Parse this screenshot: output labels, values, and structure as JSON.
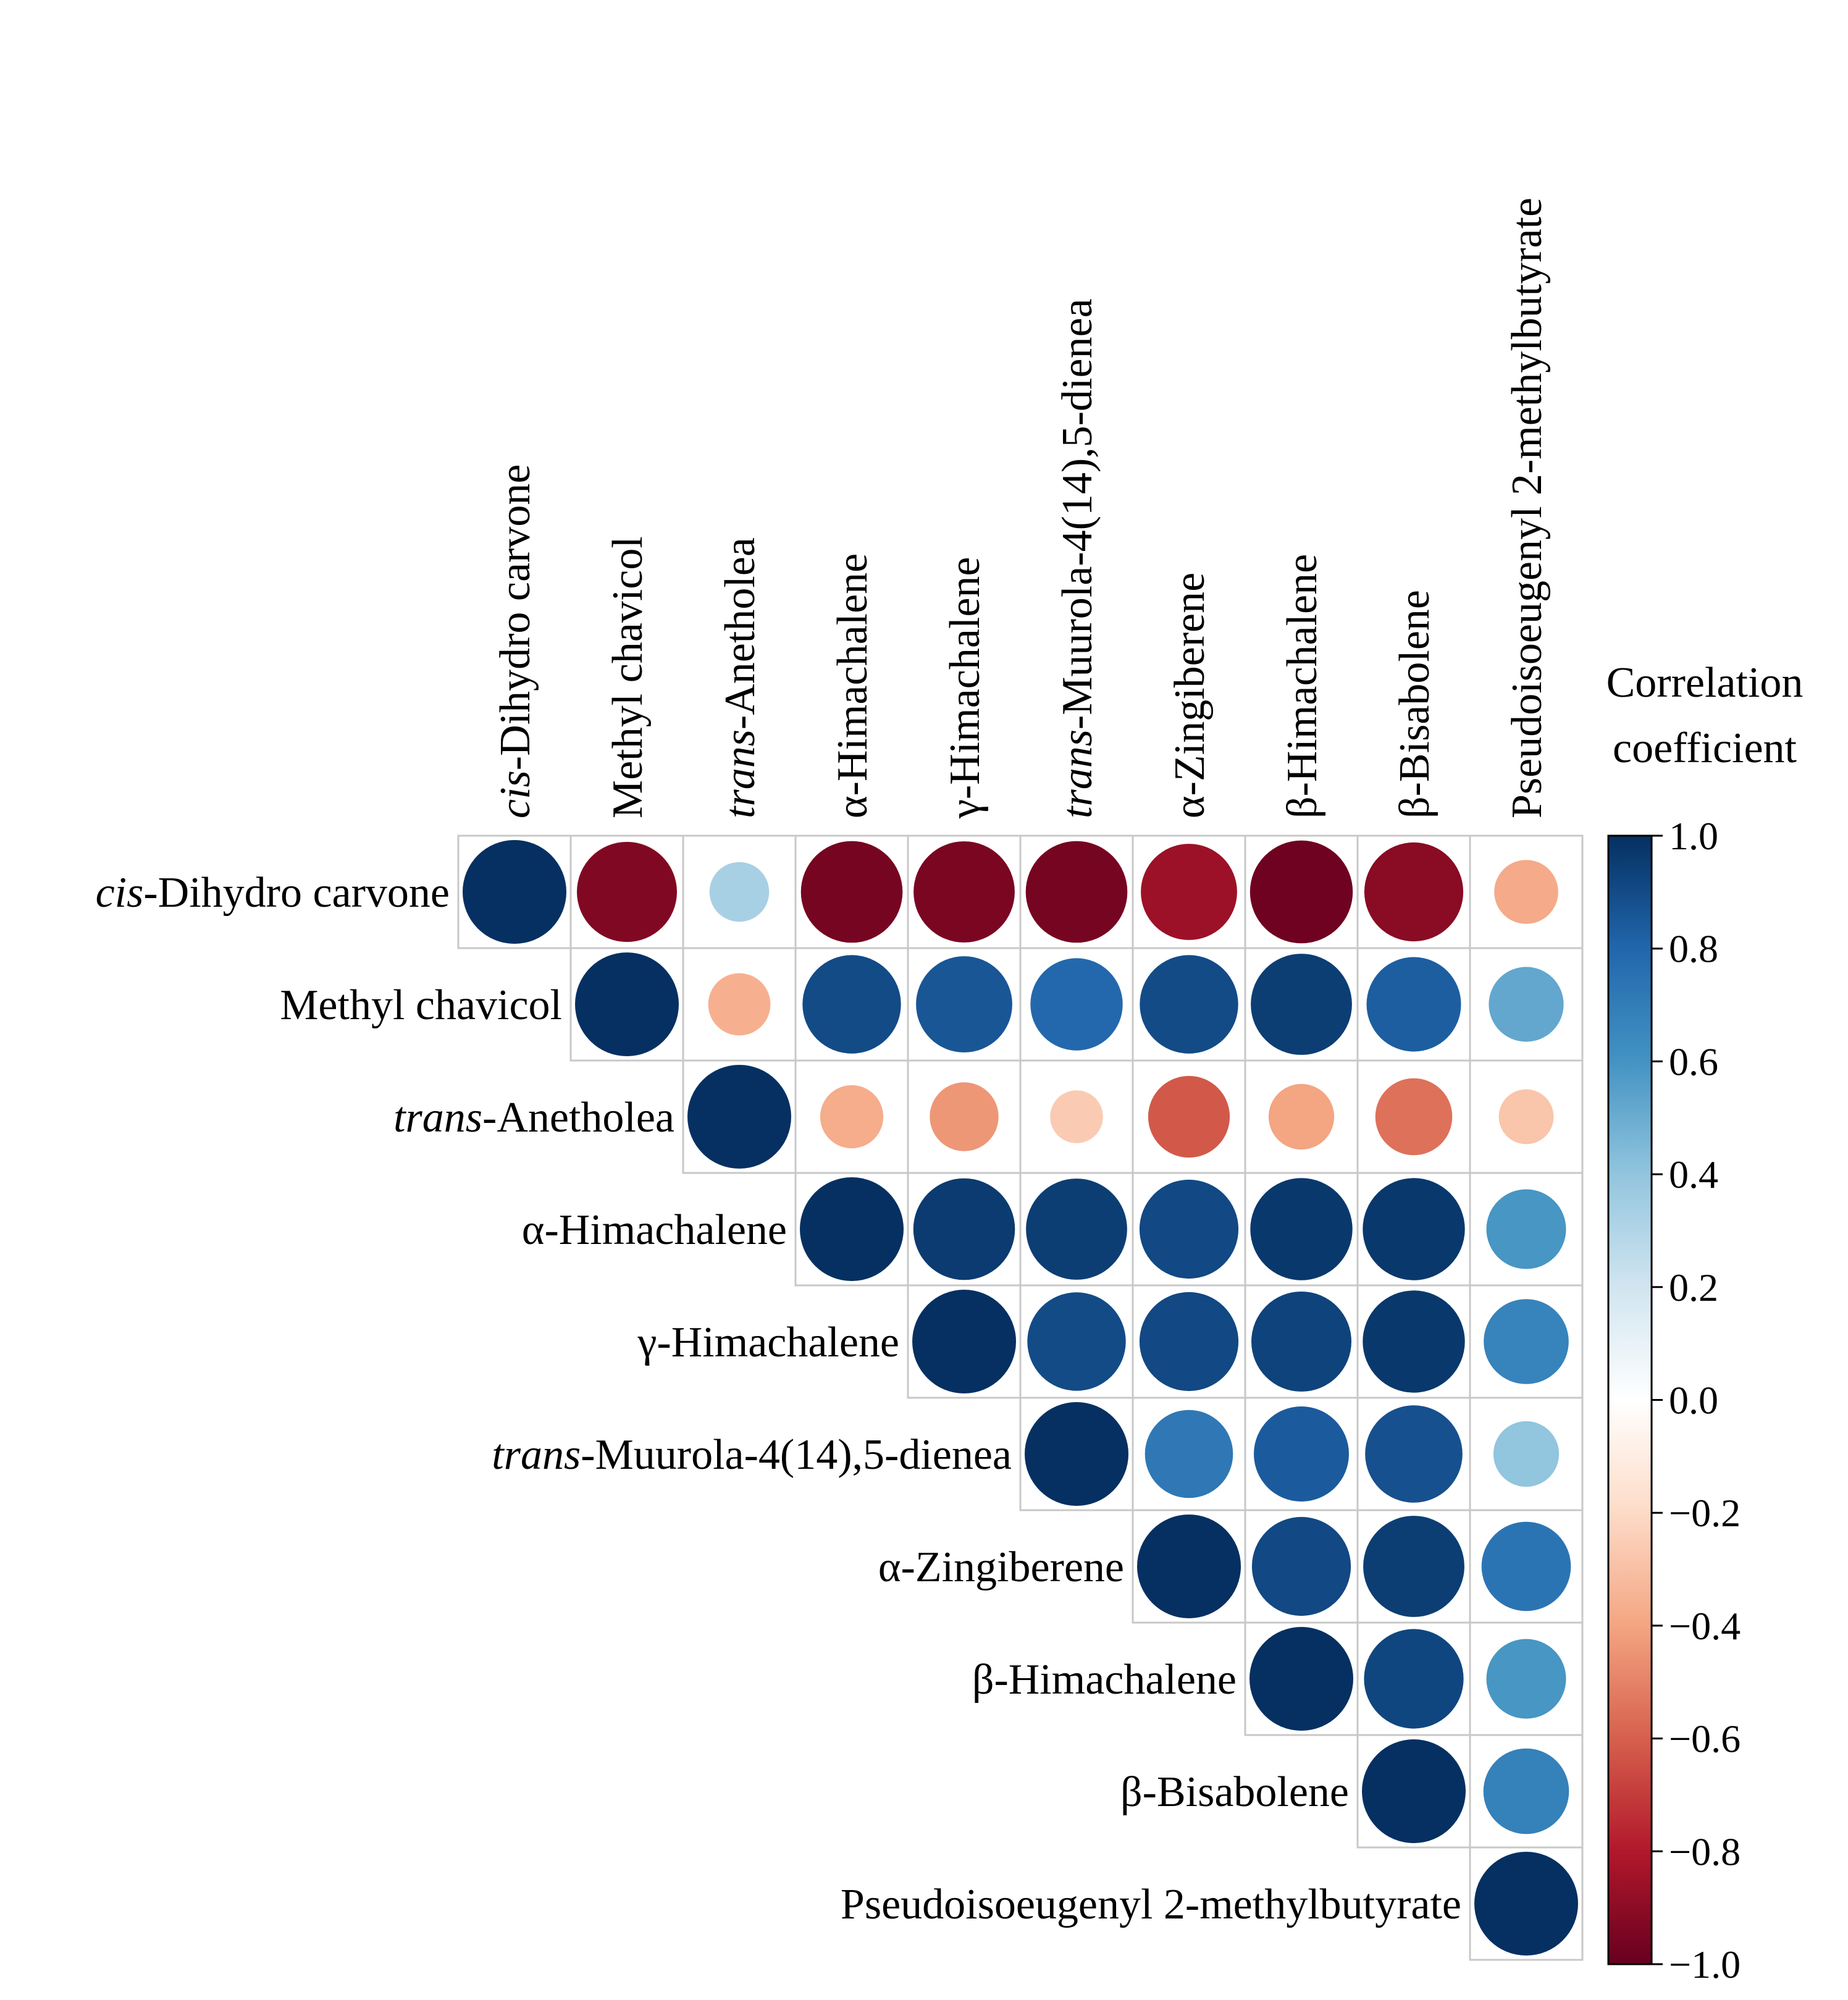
{
  "chart_data": {
    "type": "heatmap",
    "title": "",
    "variables": [
      {
        "italic": "cis",
        "rest": "-Dihydro carvone"
      },
      {
        "italic": "",
        "rest": "Methyl chavicol"
      },
      {
        "italic": "trans",
        "rest": "-Anetholea"
      },
      {
        "italic": "",
        "rest": "α-Himachalene"
      },
      {
        "italic": "",
        "rest": "γ-Himachalene"
      },
      {
        "italic": "trans",
        "rest": "-Muurola-4(14),5-dienea"
      },
      {
        "italic": "",
        "rest": "α-Zingiberene"
      },
      {
        "italic": "",
        "rest": "β-Himachalene"
      },
      {
        "italic": "",
        "rest": "β-Bisabolene"
      },
      {
        "italic": "",
        "rest": "Pseudoisoeugenyl 2-methylbutyrate"
      }
    ],
    "matrix": [
      [
        1.0,
        -0.93,
        0.33,
        -0.96,
        -0.95,
        -0.96,
        -0.86,
        -0.98,
        -0.91,
        -0.38
      ],
      [
        null,
        1.0,
        -0.36,
        0.9,
        0.86,
        0.79,
        0.9,
        0.95,
        0.83,
        0.52
      ],
      [
        null,
        null,
        1.0,
        -0.37,
        -0.44,
        -0.26,
        -0.62,
        -0.4,
        -0.55,
        -0.28
      ],
      [
        null,
        null,
        null,
        1.0,
        0.96,
        0.95,
        0.91,
        0.97,
        0.97,
        0.59
      ],
      [
        null,
        null,
        null,
        null,
        1.0,
        0.9,
        0.91,
        0.93,
        0.97,
        0.67
      ],
      [
        null,
        null,
        null,
        null,
        null,
        1.0,
        0.72,
        0.84,
        0.88,
        0.4
      ],
      [
        null,
        null,
        null,
        null,
        null,
        null,
        1.0,
        0.91,
        0.95,
        0.74
      ],
      [
        null,
        null,
        null,
        null,
        null,
        null,
        null,
        1.0,
        0.92,
        0.59
      ],
      [
        null,
        null,
        null,
        null,
        null,
        null,
        null,
        null,
        1.0,
        0.68
      ],
      [
        null,
        null,
        null,
        null,
        null,
        null,
        null,
        null,
        null,
        1.0
      ]
    ],
    "colorbar": {
      "title_lines": [
        "Correlation",
        "coefficient"
      ],
      "range": [
        -1.0,
        1.0
      ],
      "ticks": [
        "1.0",
        "0.8",
        "0.6",
        "0.4",
        "0.2",
        "0.0",
        "−0.2",
        "−0.4",
        "−0.6",
        "−0.8",
        "−1.0"
      ],
      "tick_values": [
        1.0,
        0.8,
        0.6,
        0.4,
        0.2,
        0.0,
        -0.2,
        -0.4,
        -0.6,
        -0.8,
        -1.0
      ]
    },
    "palette": [
      "#67001f",
      "#b2182b",
      "#d6604d",
      "#f4a582",
      "#fddbc7",
      "#ffffff",
      "#d1e5f0",
      "#92c5de",
      "#4393c3",
      "#2166ac",
      "#053061"
    ],
    "grid": true
  }
}
